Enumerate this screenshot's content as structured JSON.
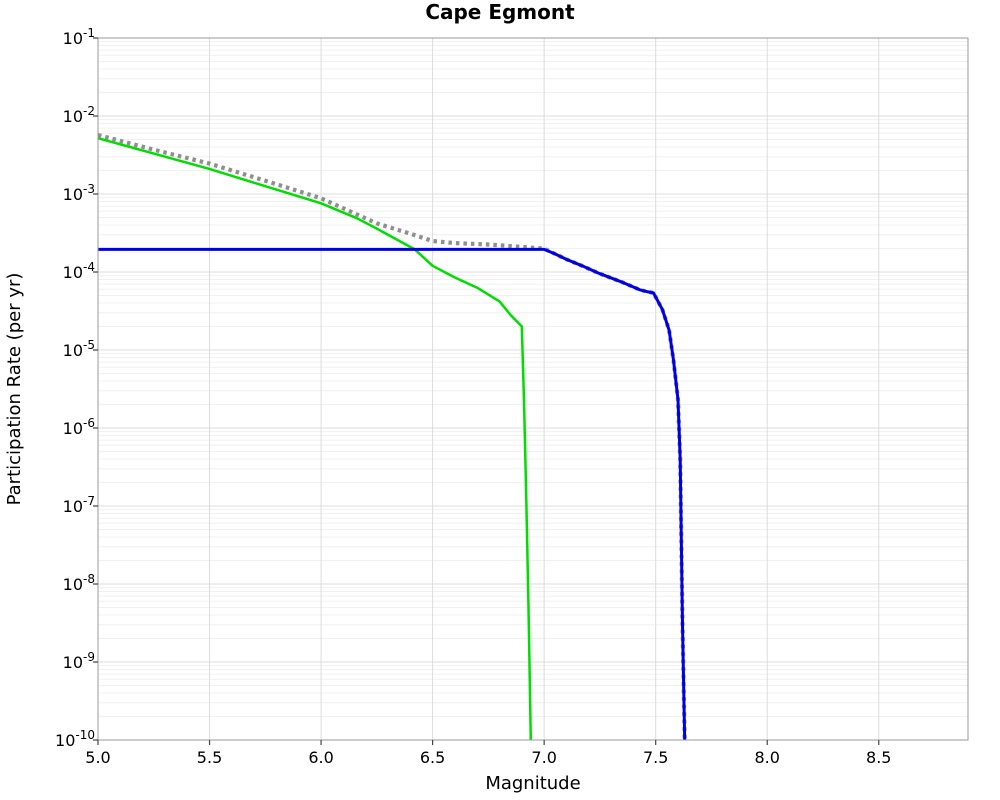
{
  "chart_data": {
    "type": "line",
    "title": "Cape Egmont",
    "xlabel": "Magnitude",
    "ylabel": "Participation Rate (per yr)",
    "xlim": [
      5.0,
      8.9
    ],
    "yscale": "log",
    "ylim": [
      1e-10,
      0.1
    ],
    "ylim_exponents": [
      -10,
      -1
    ],
    "grid": true,
    "legend_position": "none",
    "x_major_ticks": [
      5.0,
      5.5,
      6.0,
      6.5,
      7.0,
      7.5,
      8.0,
      8.5
    ],
    "x_tick_labels": [
      "5.0",
      "5.5",
      "6.0",
      "6.5",
      "7.0",
      "7.5",
      "8.0",
      "8.5"
    ],
    "y_tick_base": "10",
    "y_tick_exponents": [
      "-1",
      "-2",
      "-3",
      "-4",
      "-5",
      "-6",
      "-7",
      "-8",
      "-9",
      "-10"
    ],
    "colors": {
      "plot_border": "#9a9a9a",
      "grid_major": "#dcdcdc",
      "grid_minor": "#f0f0f0",
      "tick_mark": "#444444",
      "text": "#000000",
      "background": "#ffffff"
    },
    "series": [
      {
        "name": "total-rate-dotted-gray",
        "color": "#8f8f8f",
        "style": "dotted",
        "stroke_width": 4.2,
        "points": [
          [
            5.0,
            0.0057
          ],
          [
            5.25,
            0.0037
          ],
          [
            5.5,
            0.00245
          ],
          [
            5.75,
            0.00148
          ],
          [
            6.0,
            0.00088
          ],
          [
            6.25,
            0.00042
          ],
          [
            6.4,
            0.00031
          ],
          [
            6.5,
            0.00025
          ],
          [
            6.6,
            0.000235
          ],
          [
            6.75,
            0.000225
          ],
          [
            6.9,
            0.00021
          ],
          [
            7.0,
            0.0002
          ],
          [
            7.05,
            0.00017
          ],
          [
            7.1,
            0.000145
          ],
          [
            7.17,
            0.00012
          ],
          [
            7.25,
            9.5e-05
          ],
          [
            7.35,
            7.4e-05
          ],
          [
            7.43,
            5.9e-05
          ],
          [
            7.46,
            5.6e-05
          ],
          [
            7.49,
            5.4e-05
          ],
          [
            7.53,
            3.3e-05
          ],
          [
            7.56,
            1.8e-05
          ],
          [
            7.58,
            7.4e-06
          ],
          [
            7.6,
            2.3e-06
          ],
          [
            7.61,
            4e-07
          ],
          [
            7.62,
            3e-09
          ],
          [
            7.63,
            1e-10
          ]
        ]
      },
      {
        "name": "rate-solid-green",
        "color": "#00dd00",
        "style": "solid",
        "stroke_width": 2.5,
        "points": [
          [
            5.0,
            0.0052
          ],
          [
            5.25,
            0.0033
          ],
          [
            5.5,
            0.0021
          ],
          [
            5.75,
            0.00126
          ],
          [
            6.0,
            0.00076
          ],
          [
            6.16,
            0.00049
          ],
          [
            6.25,
            0.00036
          ],
          [
            6.42,
            0.000195
          ],
          [
            6.5,
            0.00012
          ],
          [
            6.6,
            8.5e-05
          ],
          [
            6.7,
            6.3e-05
          ],
          [
            6.8,
            4.2e-05
          ],
          [
            6.85,
            2.8e-05
          ],
          [
            6.9,
            2e-05
          ],
          [
            6.91,
            2e-06
          ],
          [
            6.92,
            1.2e-07
          ],
          [
            6.93,
            5e-09
          ],
          [
            6.94,
            1e-10
          ]
        ]
      },
      {
        "name": "rate-solid-blue",
        "color": "#0000e6",
        "style": "solid",
        "stroke_width": 3,
        "points": [
          [
            5.0,
            0.000195
          ],
          [
            7.0,
            0.000195
          ],
          [
            7.05,
            0.00017
          ],
          [
            7.1,
            0.000145
          ],
          [
            7.17,
            0.00012
          ],
          [
            7.25,
            9.5e-05
          ],
          [
            7.35,
            7.4e-05
          ],
          [
            7.43,
            5.9e-05
          ],
          [
            7.46,
            5.6e-05
          ],
          [
            7.49,
            5.4e-05
          ],
          [
            7.53,
            3.3e-05
          ],
          [
            7.56,
            1.8e-05
          ],
          [
            7.58,
            7.4e-06
          ],
          [
            7.6,
            2.3e-06
          ],
          [
            7.61,
            4e-07
          ],
          [
            7.62,
            3e-09
          ],
          [
            7.63,
            1e-10
          ]
        ]
      }
    ]
  }
}
